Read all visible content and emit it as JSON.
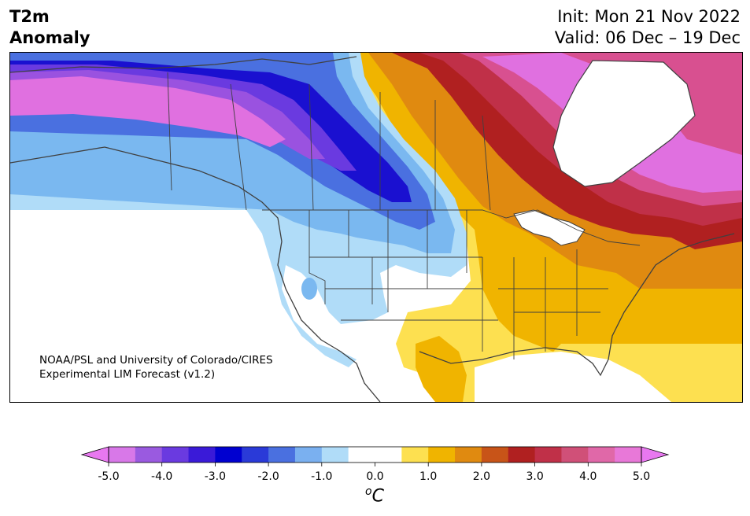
{
  "header": {
    "title_line1": "T2m",
    "title_line2": "Anomaly",
    "init_text": "Init: Mon 21 Nov 2022",
    "valid_text": "Valid: 06 Dec – 19 Dec"
  },
  "credit": {
    "line1": "NOAA/PSL and University of Colorado/CIRES",
    "line2": "Experimental LIM Forecast (v1.2)"
  },
  "colorbar": {
    "unit_super": "o",
    "unit_base": "C",
    "ticks": [
      "-5.0",
      "-4.0",
      "-3.0",
      "-2.0",
      "-1.0",
      "0.0",
      "1.0",
      "2.0",
      "3.0",
      "4.0",
      "5.0"
    ],
    "tick_values": [
      -5,
      -4,
      -3,
      -2,
      -1,
      0,
      1,
      2,
      3,
      4,
      5
    ],
    "range": [
      -5,
      5
    ],
    "extend": "both",
    "colors": [
      "#d878e8",
      "#9a5ae0",
      "#6a3ae0",
      "#3a1ad8",
      "#0000d0",
      "#2a3ad8",
      "#4a70e0",
      "#7ab0f0",
      "#b0dcf8",
      "#ffffff",
      "#ffffff",
      "#fde050",
      "#f0b400",
      "#e08a10",
      "#c85418",
      "#b02020",
      "#c03048",
      "#d05078",
      "#e068a8",
      "#e878d8"
    ],
    "under_color": "#e878f0",
    "over_color": "#e878f0"
  },
  "map": {
    "region": "North America",
    "variable": "2-m temperature anomaly",
    "colors": {
      "magenta": "#e070e0",
      "purple": "#9a52e0",
      "violet": "#6a3ae0",
      "deepblue": "#1a10d0",
      "blue": "#4a70e0",
      "lightblue": "#7ab8f0",
      "paleblue": "#b0dcf8",
      "yellow": "#fde050",
      "gold": "#f0b400",
      "orange": "#e08a10",
      "red": "#b02020",
      "crimson": "#c03048",
      "pink": "#d85090",
      "border": "#404040"
    }
  }
}
